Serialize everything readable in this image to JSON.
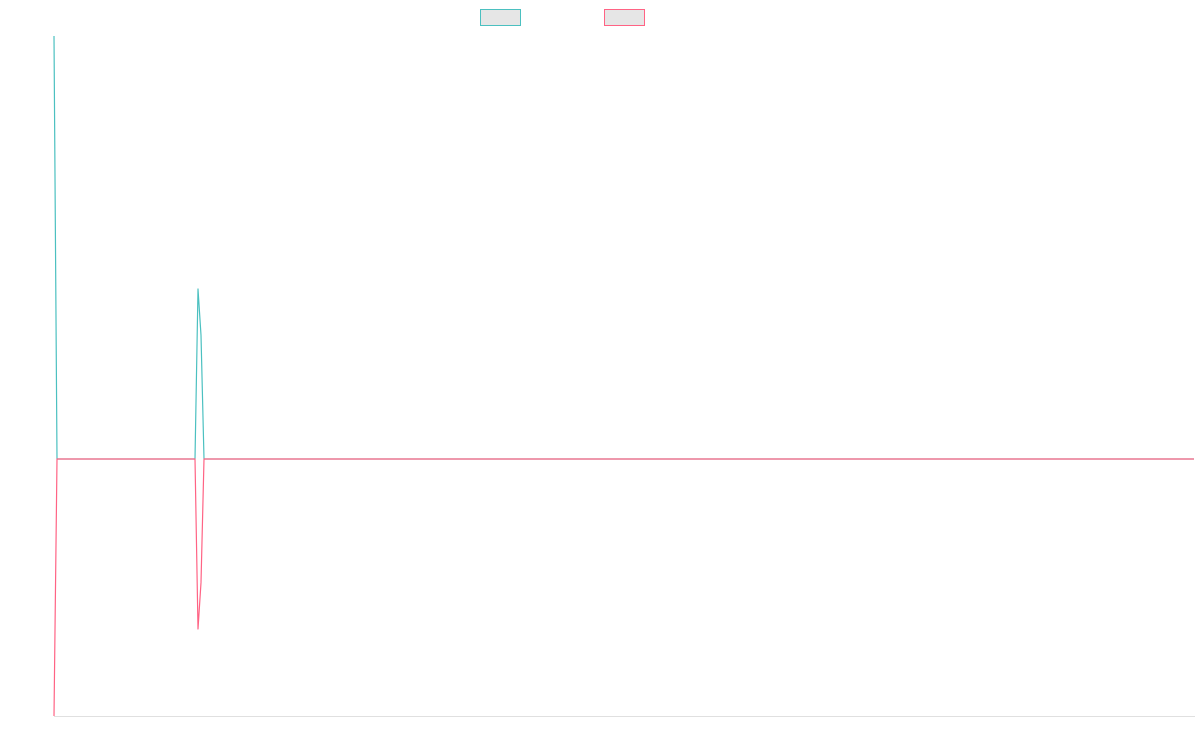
{
  "chart_data": {
    "type": "line",
    "x": [
      0,
      1,
      47,
      48,
      49,
      50,
      380
    ],
    "series": [
      {
        "color": "#4bc0c0",
        "values": [
          100,
          37.8,
          37.8,
          62.8,
          56,
          37.8,
          37.8
        ]
      },
      {
        "color": "#ff6384",
        "values": [
          0,
          37.8,
          37.8,
          12.8,
          19.6,
          37.8,
          37.8
        ]
      }
    ],
    "xlim": [
      0,
      380
    ],
    "ylim": [
      0,
      100
    ]
  }
}
